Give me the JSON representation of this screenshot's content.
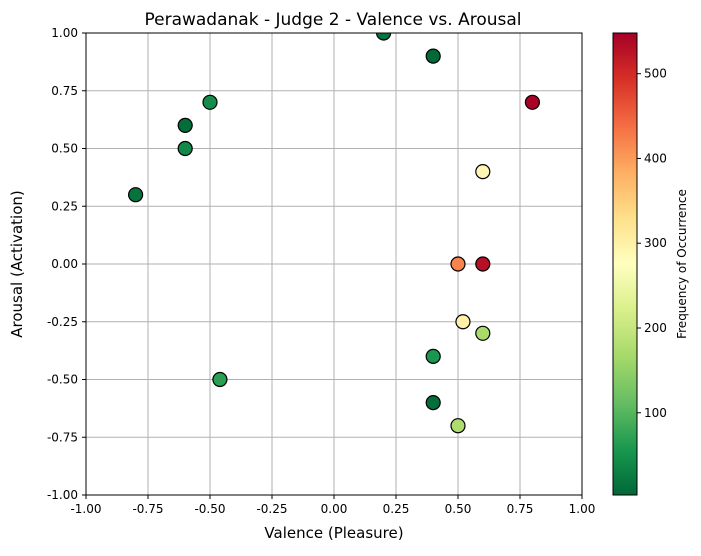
{
  "chart_data": {
    "type": "scatter",
    "title": "Perawadanak - Judge 2 - Valence vs. Arousal",
    "xlabel": "Valence (Pleasure)",
    "ylabel": "Arousal (Activation)",
    "xlim": [
      -1.0,
      1.0
    ],
    "ylim": [
      -1.0,
      1.0
    ],
    "grid": true,
    "xticks": [
      "-1.00",
      "-0.75",
      "-0.50",
      "-0.25",
      "0.00",
      "0.25",
      "0.50",
      "0.75",
      "1.00"
    ],
    "yticks": [
      "-1.00",
      "-0.75",
      "-0.50",
      "-0.25",
      "0.00",
      "0.25",
      "0.50",
      "0.75",
      "1.00"
    ],
    "colorbar": {
      "label": "Frequency of Occurrence",
      "range": [
        3,
        548
      ],
      "colormap": "RdYlGn_r",
      "ticks": [
        "100",
        "200",
        "300",
        "400",
        "500"
      ]
    },
    "points": [
      {
        "x": 0.2,
        "y": 1.0,
        "value": 15
      },
      {
        "x": 0.4,
        "y": 0.9,
        "value": 5
      },
      {
        "x": -0.5,
        "y": 0.7,
        "value": 45
      },
      {
        "x": 0.8,
        "y": 0.7,
        "value": 545
      },
      {
        "x": -0.6,
        "y": 0.6,
        "value": 10
      },
      {
        "x": -0.6,
        "y": 0.5,
        "value": 40
      },
      {
        "x": 0.6,
        "y": 0.4,
        "value": 290
      },
      {
        "x": -0.8,
        "y": 0.3,
        "value": 15
      },
      {
        "x": 0.5,
        "y": 0.0,
        "value": 420
      },
      {
        "x": 0.6,
        "y": 0.0,
        "value": 530
      },
      {
        "x": 0.52,
        "y": -0.25,
        "value": 300
      },
      {
        "x": 0.6,
        "y": -0.3,
        "value": 170
      },
      {
        "x": 0.4,
        "y": -0.4,
        "value": 55
      },
      {
        "x": -0.46,
        "y": -0.5,
        "value": 70
      },
      {
        "x": 0.4,
        "y": -0.6,
        "value": 10
      },
      {
        "x": 0.5,
        "y": -0.7,
        "value": 175
      }
    ]
  }
}
